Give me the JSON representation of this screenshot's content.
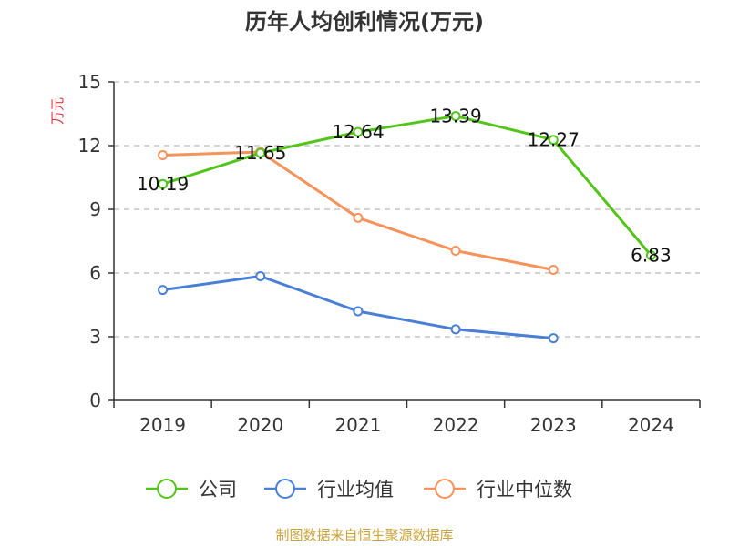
{
  "chart_data": {
    "type": "line",
    "title": "历年人均创利情况(万元)",
    "ylabel": "万元",
    "categories": [
      "2019",
      "2020",
      "2021",
      "2022",
      "2023",
      "2024"
    ],
    "ylim": [
      0,
      15
    ],
    "yticks": [
      0,
      3,
      6,
      9,
      12,
      15
    ],
    "grid": true,
    "legend_position": "bottom",
    "series": [
      {
        "name": "公司",
        "color": "#52c41a",
        "values": [
          10.19,
          11.65,
          12.64,
          13.39,
          12.27,
          6.83
        ],
        "labels": [
          "10.19",
          "11.65",
          "12.64",
          "13.39",
          "12.27",
          "6.83"
        ]
      },
      {
        "name": "行业均值",
        "color": "#4a7fd6",
        "values": [
          5.2,
          5.85,
          4.2,
          3.35,
          2.93,
          null
        ]
      },
      {
        "name": "行业中位数",
        "color": "#f5935a",
        "values": [
          11.55,
          11.7,
          8.6,
          7.05,
          6.15,
          null
        ]
      }
    ]
  },
  "colors": {
    "ylabel": "#e0383e",
    "source": "#c9a23a",
    "axis": "#333333",
    "grid": "#bbbbbb"
  },
  "source_text": "制图数据来自恒生聚源数据库"
}
